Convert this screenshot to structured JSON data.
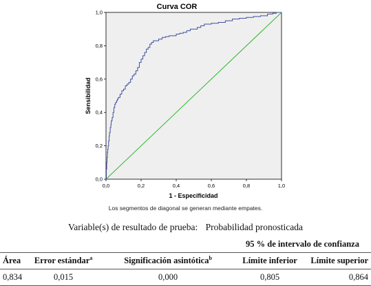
{
  "chart_data": {
    "type": "line",
    "title": "Curva COR",
    "xlabel": "1 - Especificidad",
    "ylabel": "Sensibilidad",
    "xlim": [
      0,
      1
    ],
    "ylim": [
      0,
      1
    ],
    "x_ticks": [
      "0,0",
      "0,2",
      "0,4",
      "0,6",
      "0,8",
      "1,0"
    ],
    "y_ticks": [
      "0,0",
      "0,2",
      "0,4",
      "0,6",
      "0,8",
      "1,0"
    ],
    "grid": false,
    "colors": {
      "plot_bg": "#efefef",
      "roc": "#3f4ea0",
      "diagonal": "#2eb82e"
    },
    "series": [
      {
        "x": [
          0,
          0.002,
          0.004,
          0.006,
          0.008,
          0.01,
          0.012,
          0.015,
          0.018,
          0.02,
          0.024,
          0.028,
          0.03,
          0.035,
          0.04,
          0.045,
          0.05,
          0.055,
          0.06,
          0.065,
          0.07,
          0.08,
          0.09,
          0.1,
          0.11,
          0.12,
          0.13,
          0.14,
          0.15,
          0.16,
          0.17,
          0.18,
          0.19,
          0.2,
          0.21,
          0.22,
          0.23,
          0.24,
          0.25,
          0.26,
          0.27,
          0.28,
          0.3,
          0.32,
          0.34,
          0.36,
          0.38,
          0.4,
          0.42,
          0.44,
          0.46,
          0.48,
          0.5,
          0.52,
          0.54,
          0.56,
          0.6,
          0.64,
          0.68,
          0.72,
          0.76,
          0.8,
          0.84,
          0.88,
          0.92,
          0.95,
          0.97,
          1.0
        ],
        "y": [
          0,
          0.06,
          0.1,
          0.13,
          0.16,
          0.18,
          0.2,
          0.23,
          0.26,
          0.28,
          0.31,
          0.33,
          0.35,
          0.37,
          0.4,
          0.43,
          0.45,
          0.46,
          0.47,
          0.48,
          0.49,
          0.51,
          0.53,
          0.54,
          0.56,
          0.57,
          0.58,
          0.6,
          0.62,
          0.63,
          0.65,
          0.67,
          0.7,
          0.72,
          0.74,
          0.76,
          0.78,
          0.79,
          0.81,
          0.82,
          0.83,
          0.83,
          0.84,
          0.85,
          0.855,
          0.86,
          0.86,
          0.87,
          0.875,
          0.88,
          0.89,
          0.9,
          0.9,
          0.91,
          0.92,
          0.93,
          0.935,
          0.94,
          0.95,
          0.96,
          0.965,
          0.97,
          0.975,
          0.98,
          0.99,
          0.995,
          1.0,
          1.0
        ]
      },
      {
        "x": [
          0,
          1
        ],
        "y": [
          0,
          1
        ]
      }
    ],
    "note": "Los segmentos de diagonal se generan mediante empates."
  },
  "table": {
    "variable_label": "Variable(s) de resultado de prueba:",
    "variable_value": "Probabilidad pronosticada",
    "ci_header": "95 % de intervalo de confianza",
    "columns": {
      "area": "Área",
      "se": "Error estándar",
      "se_sup": "a",
      "sig": "Significación asintótica",
      "sig_sup": "b",
      "lower": "Límite inferior",
      "upper": "Límite superior"
    },
    "row": {
      "area": "0,834",
      "se": "0,015",
      "sig": "0,000",
      "lower": "0,805",
      "upper": "0,864"
    }
  }
}
